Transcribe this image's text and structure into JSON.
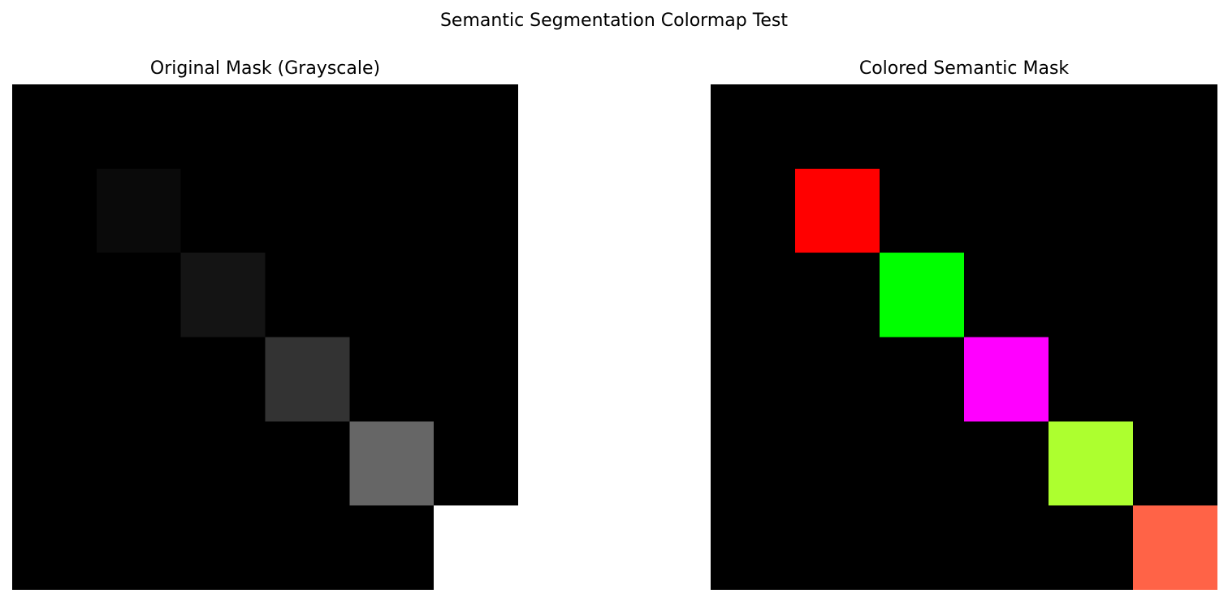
{
  "suptitle": "Semantic Segmentation Colormap Test",
  "chart_data": [
    {
      "type": "heatmap",
      "title": "Original Mask (Grayscale)",
      "grid_size": [
        6,
        6
      ],
      "background_color": "#000000",
      "axis_visible": false,
      "cells": [
        {
          "row": 1,
          "col": 1,
          "color": "#0a0a0a"
        },
        {
          "row": 2,
          "col": 2,
          "color": "#141414"
        },
        {
          "row": 3,
          "col": 3,
          "color": "#333333"
        },
        {
          "row": 4,
          "col": 4,
          "color": "#666666"
        },
        {
          "row": 5,
          "col": 5,
          "color": "#ffffff"
        }
      ]
    },
    {
      "type": "heatmap",
      "title": "Colored Semantic Mask",
      "grid_size": [
        6,
        6
      ],
      "background_color": "#000000",
      "axis_visible": false,
      "cells": [
        {
          "row": 1,
          "col": 1,
          "color": "#ff0000"
        },
        {
          "row": 2,
          "col": 2,
          "color": "#00ff00"
        },
        {
          "row": 3,
          "col": 3,
          "color": "#ff00ff"
        },
        {
          "row": 4,
          "col": 4,
          "color": "#adff2f"
        },
        {
          "row": 5,
          "col": 5,
          "color": "#ff6347"
        }
      ]
    }
  ]
}
